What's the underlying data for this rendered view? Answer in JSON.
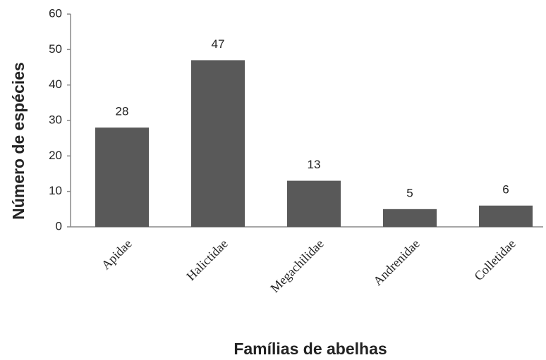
{
  "chart_data": {
    "type": "bar",
    "x_label": "Famílias de abelhas",
    "y_label": "Número de espécies",
    "categories": [
      "Apidae",
      "Halictidae",
      "Megachilidae",
      "Andrenidae",
      "Colletidae"
    ],
    "values": [
      28,
      47,
      13,
      5,
      6
    ],
    "color": "#595959",
    "ylim": [
      0,
      60
    ],
    "yticks": [
      0,
      10,
      20,
      30,
      40,
      50,
      60
    ],
    "grid": false
  }
}
